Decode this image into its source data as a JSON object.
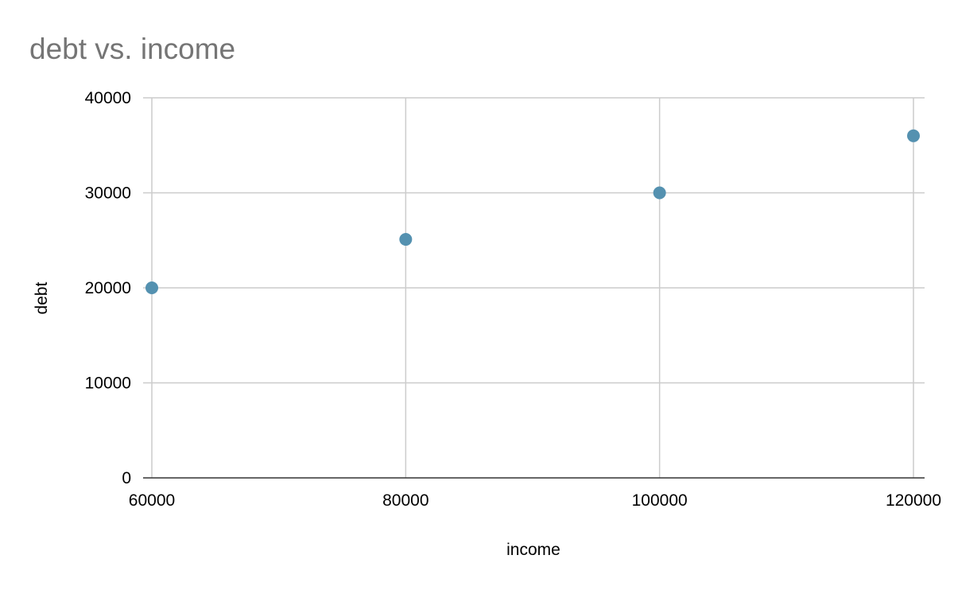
{
  "chart_data": {
    "type": "scatter",
    "title": "debt vs. income",
    "xlabel": "income",
    "ylabel": "debt",
    "xlim": [
      60000,
      120000
    ],
    "ylim": [
      0,
      40000
    ],
    "x_ticks": [
      60000,
      80000,
      100000,
      120000
    ],
    "y_ticks": [
      0,
      10000,
      20000,
      30000,
      40000
    ],
    "grid": true,
    "legend": "none",
    "series": [
      {
        "color": "#5491b0",
        "points": [
          {
            "x": 60000,
            "y": 20000
          },
          {
            "x": 80000,
            "y": 25100
          },
          {
            "x": 100000,
            "y": 30000
          },
          {
            "x": 120000,
            "y": 36000
          }
        ]
      }
    ]
  },
  "colors": {
    "title": "#757575",
    "grid": "#cccccc",
    "axis": "#333333",
    "text": "#000000"
  }
}
